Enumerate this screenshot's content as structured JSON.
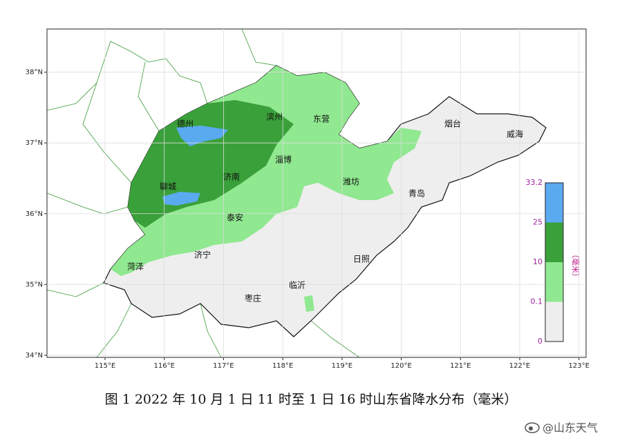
{
  "map": {
    "lat_ticks": [
      {
        "value": 38,
        "label": "38°N"
      },
      {
        "value": 37,
        "label": "37°N"
      },
      {
        "value": 36,
        "label": "36°N"
      },
      {
        "value": 35,
        "label": "35°N"
      },
      {
        "value": 34,
        "label": "34°N"
      }
    ],
    "lon_ticks": [
      {
        "value": 115,
        "label": "115°E"
      },
      {
        "value": 116,
        "label": "116°E"
      },
      {
        "value": 117,
        "label": "117°E"
      },
      {
        "value": 118,
        "label": "118°E"
      },
      {
        "value": 119,
        "label": "119°E"
      },
      {
        "value": 120,
        "label": "120°E"
      },
      {
        "value": 121,
        "label": "121°E"
      },
      {
        "value": 122,
        "label": "122°E"
      },
      {
        "value": 123,
        "label": "123°E"
      }
    ],
    "xlim": [
      114.02,
      123.12
    ],
    "ylim": [
      33.97,
      38.61
    ],
    "cities": [
      "德州",
      "滨州",
      "东营",
      "烟台",
      "威海",
      "淄博",
      "聊城",
      "济南",
      "潍坊",
      "青岛",
      "泰安",
      "济宁",
      "日照",
      "菏泽",
      "临沂",
      "枣庄"
    ]
  },
  "legend": {
    "ticks": [
      33.2,
      25,
      10,
      0.1,
      0
    ],
    "colors": [
      "#5aaaf0",
      "#3aa03a",
      "#90e890",
      "#eeeeee"
    ],
    "title": "（毫米）"
  },
  "caption": "图 1  2022 年 10 月 1 日 11 时至 1 日 16 时山东省降水分布（毫米）",
  "watermark": "@山东天气"
}
